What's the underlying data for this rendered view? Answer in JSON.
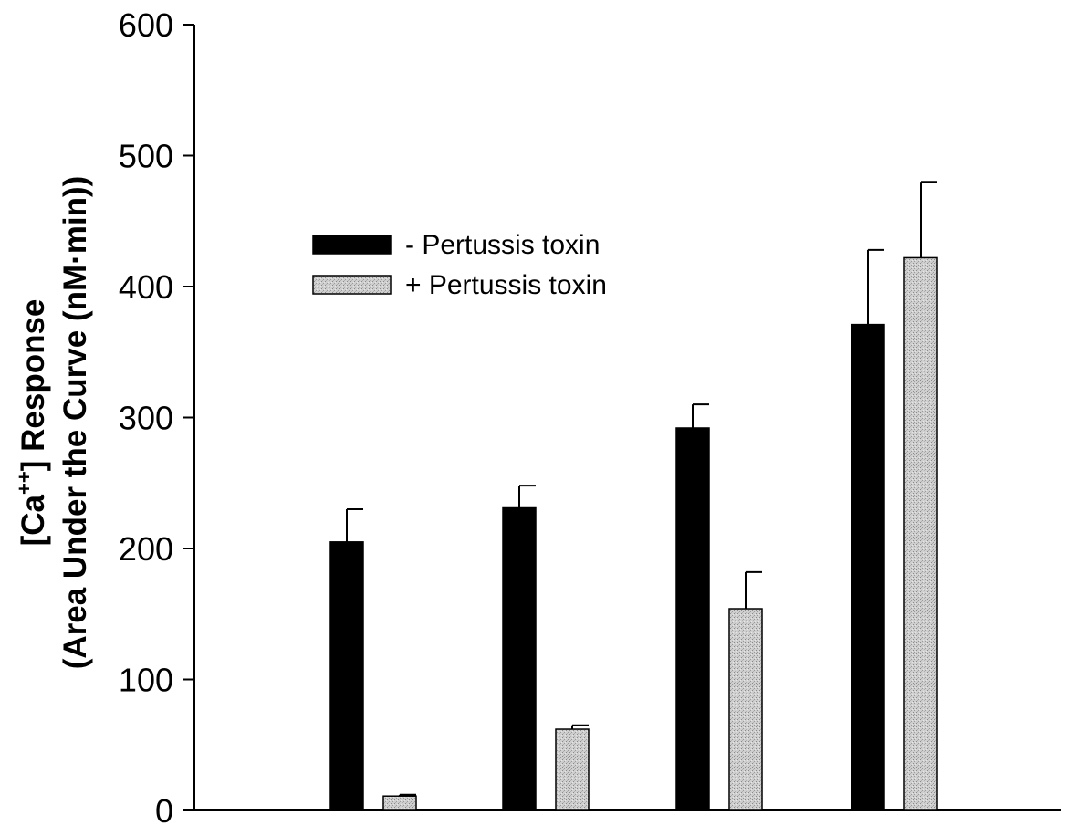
{
  "chart_data": {
    "type": "bar",
    "categories": [
      "",
      "",
      "",
      ""
    ],
    "ylim": [
      0,
      600
    ],
    "yticks": [
      0,
      100,
      200,
      300,
      400,
      500,
      600
    ],
    "ylabel": {
      "line1_prefix": "[Ca",
      "line1_superscript": "++",
      "line1_suffix": "] Response",
      "line2": "(Area Under the Curve (nM·min))"
    },
    "xlabel": "",
    "grid": false,
    "legend_position": "upper-left-center",
    "series": [
      {
        "name": "- Pertussis toxin",
        "color": "#000000",
        "pattern": "solid",
        "values": [
          205,
          231,
          292,
          371
        ],
        "errors": [
          25,
          17,
          18,
          57
        ]
      },
      {
        "name": "+ Pertussis toxin",
        "color": "#c8c8c8",
        "pattern": "stipple",
        "values": [
          11,
          62,
          154,
          422
        ],
        "errors": [
          1,
          3,
          28,
          58
        ]
      }
    ]
  }
}
